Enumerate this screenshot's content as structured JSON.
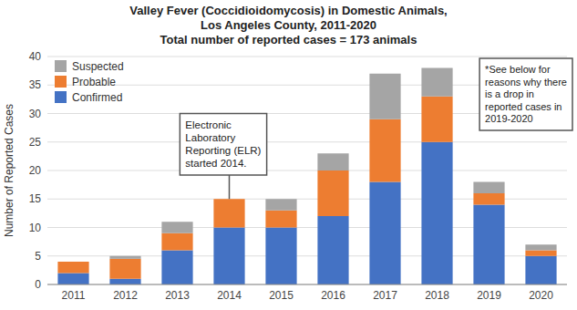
{
  "chart_data": {
    "type": "bar",
    "stacked": true,
    "title": "Valley Fever (Coccidioidomycosis) in Domestic Animals,\nLos Angeles County, 2011-2020\nTotal number of reported cases = 173 animals",
    "y_label": "Number of Reported Cases",
    "categories": [
      "2011",
      "2012",
      "2013",
      "2014",
      "2015",
      "2016",
      "2017",
      "2018",
      "2019",
      "2020"
    ],
    "series": [
      {
        "name": "Confirmed",
        "color": "#4472C4",
        "values": [
          2,
          1,
          6,
          10,
          10,
          12,
          18,
          25,
          14,
          5
        ]
      },
      {
        "name": "Probable",
        "color": "#ED7D31",
        "values": [
          2,
          3.5,
          3,
          5,
          3,
          8,
          11,
          8,
          2,
          1
        ]
      },
      {
        "name": "Suspected",
        "color": "#A5A5A5",
        "values": [
          0,
          0.5,
          2,
          0,
          2,
          3,
          8,
          5,
          2,
          1
        ]
      }
    ],
    "ylim": [
      0,
      40
    ],
    "yticks": [
      0,
      5,
      10,
      15,
      20,
      25,
      30,
      35,
      40
    ],
    "grid": true,
    "legend": "upper left",
    "annotations": [
      {
        "text": "Electronic\nLaboratory\nReporting (ELR)\nstarted 2014.",
        "x": "2014",
        "y": 15
      },
      {
        "text": "*See below for\nreasons why there\nis a drop in\nreported cases in\n2019-2020"
      }
    ]
  }
}
